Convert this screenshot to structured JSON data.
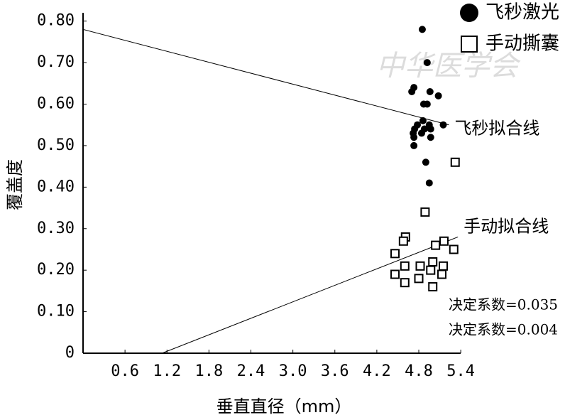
{
  "chart_data": {
    "type": "scatter",
    "x_label": "垂直直径（mm）",
    "y_label": "覆盖度",
    "watermark": "中华医学会",
    "xlim": [
      0,
      5.5
    ],
    "ylim": [
      0,
      0.82
    ],
    "xticks": [
      0.6,
      1.2,
      1.8,
      2.4,
      {
        "value": 3.0,
        "label": "3.0"
      },
      3.6,
      4.2,
      4.8,
      5.4
    ],
    "yticks": [
      0,
      {
        "value": 0.1,
        "label": "0.10"
      },
      {
        "value": 0.2,
        "label": "0.20"
      },
      {
        "value": 0.3,
        "label": "0.30"
      },
      {
        "value": 0.4,
        "label": "0.40"
      },
      {
        "value": 0.5,
        "label": "0.50"
      },
      {
        "value": 0.6,
        "label": "0.60"
      },
      {
        "value": 0.7,
        "label": "0.70"
      },
      {
        "value": 0.8,
        "label": "0.80"
      }
    ],
    "series": [
      {
        "name": "飞秒激光",
        "marker": "circle",
        "color": "#000000",
        "x": [
          4.85,
          4.92,
          4.73,
          4.7,
          4.96,
          5.08,
          4.87,
          4.92,
          4.86,
          4.95,
          4.78,
          4.74,
          4.88,
          4.97,
          5.15,
          4.72,
          4.84,
          4.73,
          4.97,
          4.73,
          4.9,
          4.95
        ],
        "y": [
          0.78,
          0.7,
          0.64,
          0.63,
          0.63,
          0.62,
          0.6,
          0.6,
          0.56,
          0.55,
          0.55,
          0.54,
          0.54,
          0.54,
          0.55,
          0.53,
          0.53,
          0.52,
          0.52,
          0.5,
          0.46,
          0.41
        ]
      },
      {
        "name": "手动撕囊",
        "marker": "square",
        "color": "#000000",
        "x": [
          5.32,
          4.89,
          4.61,
          4.58,
          5.04,
          5.16,
          5.3,
          4.46,
          4.6,
          4.82,
          5.0,
          5.15,
          4.46,
          4.8,
          4.97,
          5.13,
          4.6,
          5.0
        ],
        "y": [
          0.46,
          0.34,
          0.28,
          0.27,
          0.26,
          0.27,
          0.25,
          0.24,
          0.21,
          0.21,
          0.22,
          0.21,
          0.19,
          0.18,
          0.2,
          0.19,
          0.17,
          0.16
        ]
      }
    ],
    "fit_lines": [
      {
        "name": "飞秒拟合线",
        "x": [
          0,
          5.23
        ],
        "y": [
          0.78,
          0.55
        ]
      },
      {
        "name": "手动拟合线",
        "x": [
          1.13,
          5.36
        ],
        "y": [
          0,
          0.28
        ]
      }
    ],
    "annotations": [
      "决定系数=0.035",
      "决定系数=0.004"
    ]
  }
}
